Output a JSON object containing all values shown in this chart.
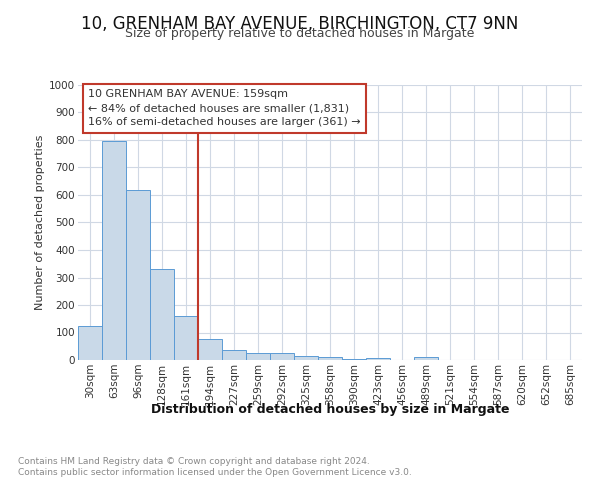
{
  "title1": "10, GRENHAM BAY AVENUE, BIRCHINGTON, CT7 9NN",
  "title2": "Size of property relative to detached houses in Margate",
  "xlabel": "Distribution of detached houses by size in Margate",
  "ylabel": "Number of detached properties",
  "bin_labels": [
    "30sqm",
    "63sqm",
    "96sqm",
    "128sqm",
    "161sqm",
    "194sqm",
    "227sqm",
    "259sqm",
    "292sqm",
    "325sqm",
    "358sqm",
    "390sqm",
    "423sqm",
    "456sqm",
    "489sqm",
    "521sqm",
    "554sqm",
    "587sqm",
    "620sqm",
    "652sqm",
    "685sqm"
  ],
  "bar_values": [
    125,
    795,
    618,
    330,
    160,
    78,
    38,
    27,
    25,
    15,
    12,
    5,
    8,
    0,
    10,
    0,
    0,
    0,
    0,
    0,
    0
  ],
  "bar_color": "#c9d9e8",
  "bar_edge_color": "#5b9bd5",
  "vline_x": 4.5,
  "vline_color": "#c0392b",
  "annotation_text": "10 GRENHAM BAY AVENUE: 159sqm\n← 84% of detached houses are smaller (1,831)\n16% of semi-detached houses are larger (361) →",
  "annotation_box_color": "#ffffff",
  "annotation_box_edge_color": "#c0392b",
  "yticks": [
    0,
    100,
    200,
    300,
    400,
    500,
    600,
    700,
    800,
    900,
    1000
  ],
  "ylim": [
    0,
    1000
  ],
  "footer_text": "Contains HM Land Registry data © Crown copyright and database right 2024.\nContains public sector information licensed under the Open Government Licence v3.0.",
  "bg_color": "#ffffff",
  "grid_color": "#d0d8e4",
  "title1_fontsize": 12,
  "title2_fontsize": 9,
  "xlabel_fontsize": 9,
  "ylabel_fontsize": 8,
  "tick_fontsize": 7.5,
  "footer_fontsize": 6.5,
  "ann_fontsize": 8
}
